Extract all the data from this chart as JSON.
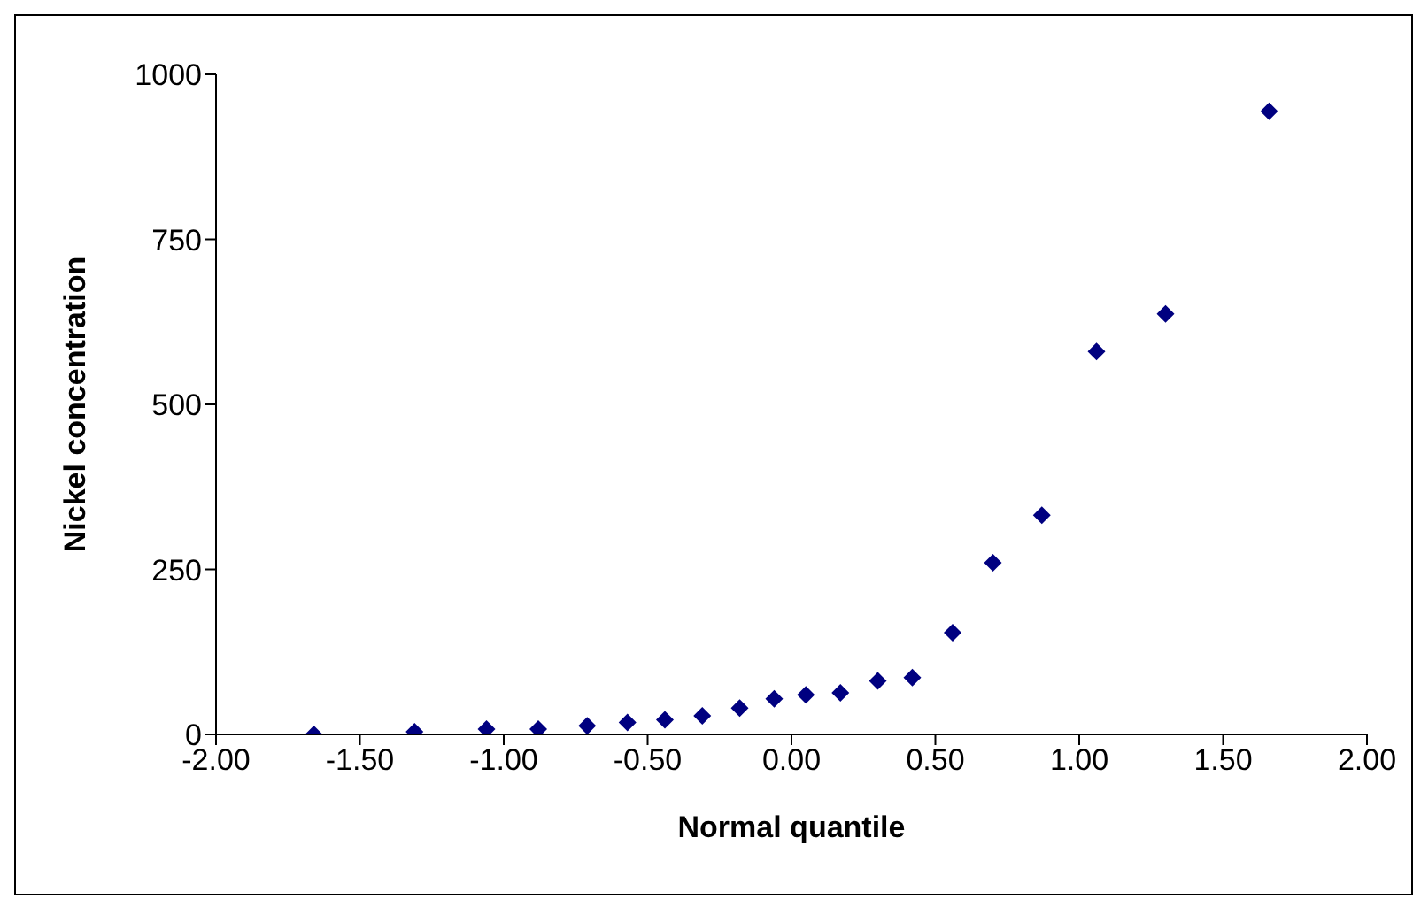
{
  "chart_data": {
    "type": "scatter",
    "xlabel": "Normal quantile",
    "ylabel": "Nickel concentration",
    "x": [
      -1.66,
      -1.31,
      -1.06,
      -0.88,
      -0.71,
      -0.57,
      -0.44,
      -0.31,
      -0.18,
      -0.06,
      0.05,
      0.17,
      0.3,
      0.42,
      0.56,
      0.7,
      0.87,
      1.06,
      1.3,
      1.66
    ],
    "series": [
      {
        "color": "#000080",
        "values": [
          0,
          4,
          8,
          8,
          13,
          18,
          22,
          28,
          40,
          54,
          60,
          63,
          81,
          86,
          154,
          260,
          332,
          580,
          637,
          944
        ]
      }
    ],
    "marker": "diamond",
    "xlim": [
      -2,
      2
    ],
    "xticks": [
      {
        "value": -2,
        "label": "-2.00"
      },
      {
        "value": -1.5,
        "label": "-1.50"
      },
      {
        "value": -1,
        "label": "-1.00"
      },
      {
        "value": -0.5,
        "label": "-0.50"
      },
      {
        "value": 0,
        "label": "0.00"
      },
      {
        "value": 0.5,
        "label": "0.50"
      },
      {
        "value": 1,
        "label": "1.00"
      },
      {
        "value": 1.5,
        "label": "1.50"
      },
      {
        "value": 2,
        "label": "2.00"
      }
    ],
    "ylim": [
      0,
      1000
    ],
    "yticks": [
      0,
      250,
      500,
      750,
      1000
    ]
  }
}
